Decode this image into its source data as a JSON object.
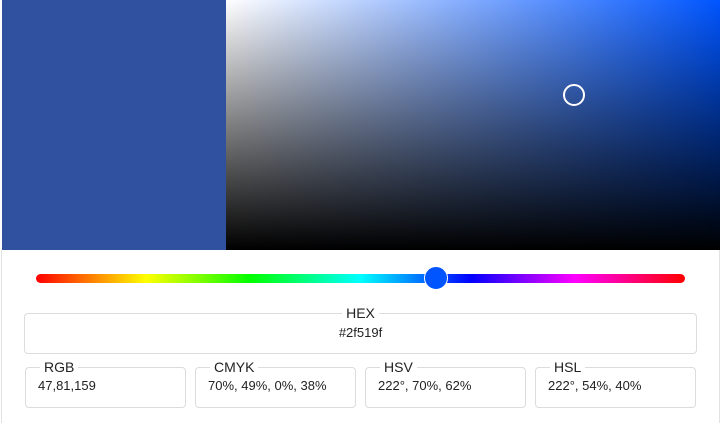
{
  "color": {
    "current_hex": "#2f519f",
    "hue_color": "#0055ff"
  },
  "fields": {
    "hex": {
      "label": "HEX",
      "value": "#2f519f"
    },
    "rgb": {
      "label": "RGB",
      "value": "47,81,159"
    },
    "cmyk": {
      "label": "CMYK",
      "value": "70%, 49%, 0%, 38%"
    },
    "hsv": {
      "label": "HSV",
      "value": "222°, 70%, 62%"
    },
    "hsl": {
      "label": "HSL",
      "value": "222°, 54%, 40%"
    }
  }
}
